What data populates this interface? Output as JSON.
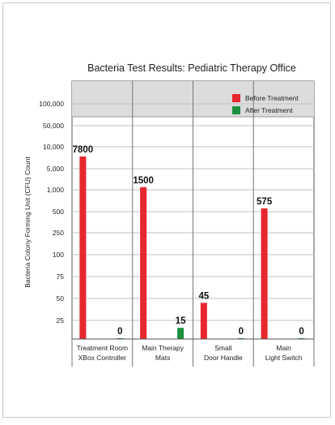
{
  "chart_data": {
    "type": "bar",
    "title": "Bacteria Test Results: Pediatric Therapy Office",
    "ylabel": "Bacteria Colony Forming Unit (CFU) Count",
    "xlabel": "",
    "y_scale": "custom-stepped",
    "yticks": [
      "25",
      "50",
      "75",
      "100",
      "250",
      "500",
      "1,000",
      "5,000",
      "10,000",
      "50,000",
      "100,000"
    ],
    "categories": [
      [
        "Treatment Room",
        "XBox Controller"
      ],
      [
        "Main Therapy",
        "Mats"
      ],
      [
        "Small",
        "Door Handle"
      ],
      [
        "Main",
        "Light Switch"
      ]
    ],
    "series": [
      {
        "name": "Before Treatment",
        "color": "#e8262f",
        "values": [
          7800,
          1500,
          45,
          575
        ],
        "labels": [
          "7800",
          "1500",
          "45",
          "575"
        ]
      },
      {
        "name": "After Treatment",
        "color": "#1e8f3e",
        "values": [
          0,
          15,
          0,
          0
        ],
        "labels": [
          "0",
          "15",
          "0",
          "0"
        ]
      }
    ],
    "legend_position": "top-right",
    "grid": true,
    "plot_background": "#dcdcdc"
  }
}
